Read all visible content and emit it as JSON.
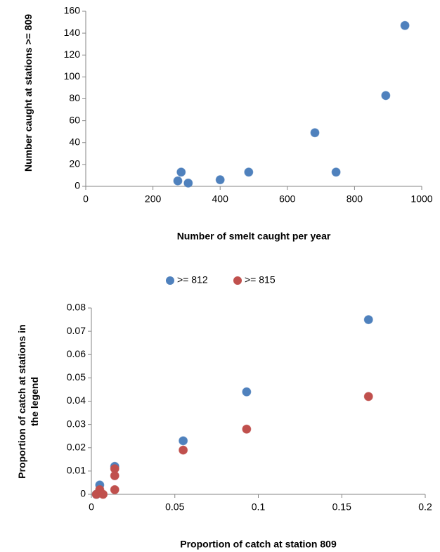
{
  "chart_data": [
    {
      "type": "scatter",
      "xlabel": "Number of smelt caught per year",
      "ylabel": "Number caught at stations >= 809",
      "xlim": [
        0,
        1000
      ],
      "xticks": [
        0,
        200,
        400,
        600,
        800,
        1000
      ],
      "ylim": [
        0,
        160
      ],
      "yticks": [
        0,
        20,
        40,
        60,
        80,
        100,
        120,
        140,
        160
      ],
      "grid": false,
      "series": [
        {
          "name": null,
          "color": "#4f81bd",
          "x": [
            274,
            284,
            305,
            400,
            485,
            682,
            745,
            893,
            950
          ],
          "values": [
            5,
            13,
            3,
            6,
            13,
            49,
            13,
            83,
            147
          ]
        }
      ]
    },
    {
      "type": "scatter",
      "xlabel": "Proportion of catch at station 809",
      "ylabel": "Proportion of catch at stations in the legend",
      "xlim": [
        0,
        0.2
      ],
      "xticks": [
        0,
        0.05,
        0.1,
        0.15,
        0.2
      ],
      "ylim": [
        0,
        0.08
      ],
      "yticks": [
        0,
        0.01,
        0.02,
        0.03,
        0.04,
        0.05,
        0.06,
        0.07,
        0.08
      ],
      "grid": false,
      "legend": "top",
      "series": [
        {
          "name": ">= 812",
          "color": "#4f81bd",
          "x": [
            0.003,
            0.005,
            0.014,
            0.055,
            0.093,
            0.166
          ],
          "values": [
            0,
            0.004,
            0.012,
            0.023,
            0.044,
            0.075
          ]
        },
        {
          "name": ">= 815",
          "color": "#c0504d",
          "x": [
            0.003,
            0.005,
            0.007,
            0.014,
            0.014,
            0.014,
            0.055,
            0.093,
            0.166
          ],
          "values": [
            0,
            0.002,
            0,
            0.008,
            0.011,
            0.002,
            0.019,
            0.028,
            0.042
          ]
        }
      ]
    }
  ]
}
